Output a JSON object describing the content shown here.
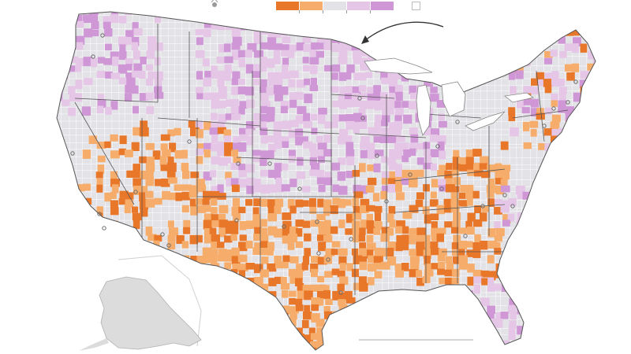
{
  "legend": {
    "bins": [
      {
        "name": "strong-orange",
        "color": "#e8772a"
      },
      {
        "name": "light-orange",
        "color": "#f6ad6b"
      },
      {
        "name": "neutral-gray",
        "color": "#e3e3e7"
      },
      {
        "name": "light-purple",
        "color": "#e5c6e7"
      },
      {
        "name": "strong-purple",
        "color": "#cf97d6"
      }
    ],
    "no_data_color": "#ffffff"
  },
  "colors": {
    "land_base": "#e3e3e7",
    "state_border": "#555555",
    "county_border": "#ffffff",
    "alaska_fill": "#dcdcdc",
    "alaska_border": "#b0b0b0",
    "city_marker": "#6b6b6b",
    "arrow": "#333333"
  },
  "icons": [
    "arrow-annotation-icon",
    "city-marker-icon",
    "compass-icon"
  ]
}
